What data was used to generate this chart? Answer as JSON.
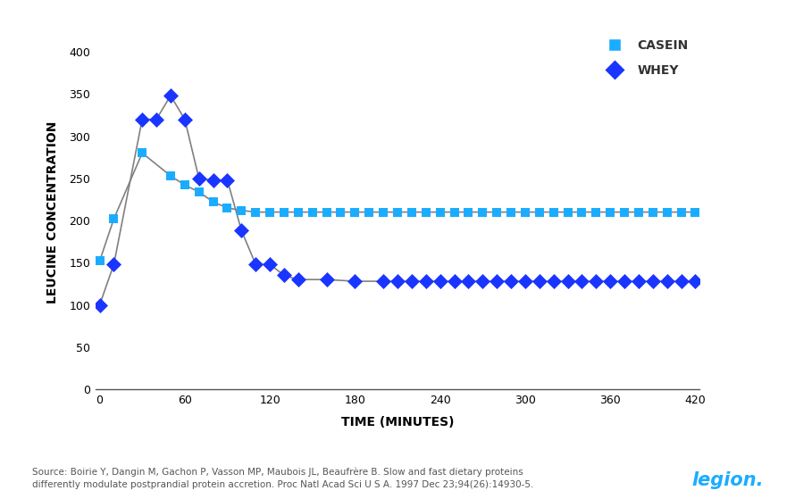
{
  "xlabel": "TIME (MINUTES)",
  "ylabel": "LEUCINE CONCENTRATION",
  "ylim": [
    0,
    420
  ],
  "xlim": [
    -3,
    423
  ],
  "yticks": [
    0,
    50,
    100,
    150,
    200,
    250,
    300,
    350,
    400
  ],
  "xticks": [
    0,
    60,
    120,
    180,
    240,
    300,
    360,
    420
  ],
  "casein_color": "#1AADFF",
  "whey_color": "#1A35FF",
  "line_color": "#808080",
  "casein_x": [
    0,
    10,
    30,
    50,
    60,
    70,
    80,
    90,
    100,
    110,
    120,
    130,
    140,
    150,
    160,
    170,
    180,
    190,
    200,
    210,
    220,
    230,
    240,
    250,
    260,
    270,
    280,
    290,
    300,
    310,
    320,
    330,
    340,
    350,
    360,
    370,
    380,
    390,
    400,
    410,
    420
  ],
  "casein_y": [
    152,
    202,
    280,
    253,
    242,
    234,
    222,
    215,
    212,
    210,
    210,
    210,
    210,
    210,
    210,
    210,
    210,
    210,
    210,
    210,
    210,
    210,
    210,
    210,
    210,
    210,
    210,
    210,
    210,
    210,
    210,
    210,
    210,
    210,
    210,
    210,
    210,
    210,
    210,
    210,
    210
  ],
  "whey_x": [
    0,
    10,
    30,
    40,
    50,
    60,
    70,
    80,
    90,
    100,
    110,
    120,
    130,
    140,
    160,
    180,
    200,
    210,
    220,
    230,
    240,
    250,
    260,
    270,
    280,
    290,
    300,
    310,
    320,
    330,
    340,
    350,
    360,
    370,
    380,
    390,
    400,
    410,
    420
  ],
  "whey_y": [
    100,
    148,
    320,
    320,
    348,
    320,
    250,
    248,
    248,
    188,
    148,
    148,
    135,
    130,
    130,
    128,
    128,
    128,
    128,
    128,
    128,
    128,
    128,
    128,
    128,
    128,
    128,
    128,
    128,
    128,
    128,
    128,
    128,
    128,
    128,
    128,
    128,
    128,
    128
  ],
  "source_text": "Source: Boirie Y, Dangin M, Gachon P, Vasson MP, Maubois JL, Beaufrère B. Slow and fast dietary proteins\ndifferently modulate postprandial protein accretion. Proc Natl Acad Sci U S A. 1997 Dec 23;94(26):14930-5.",
  "legend_casein": "CASEIN",
  "legend_whey": "WHEY",
  "bg_color": "#FFFFFF"
}
